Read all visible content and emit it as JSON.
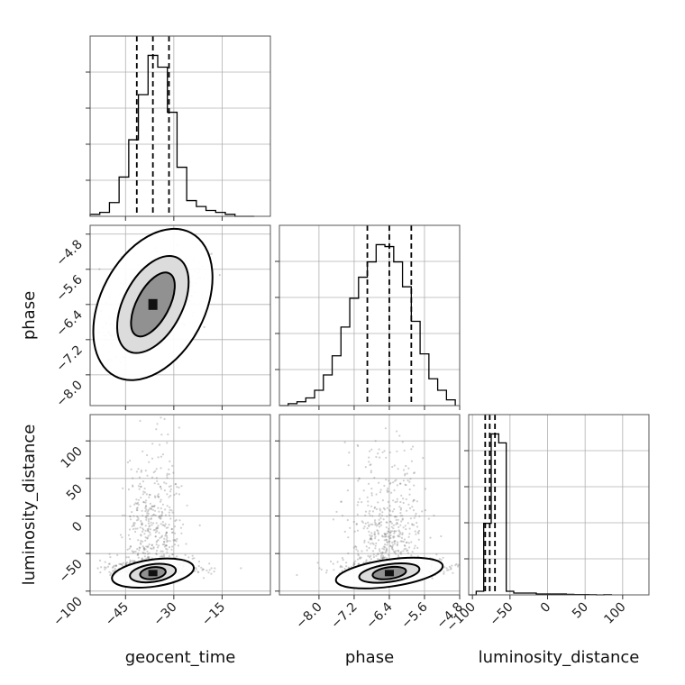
{
  "chart_data": {
    "type": "corner",
    "parameters": [
      "geocent_time",
      "phase",
      "luminosity_distance"
    ],
    "quantile_lines": {
      "geocent_time": [
        -41.5,
        -36.5,
        -31.5
      ],
      "phase": [
        -6.9,
        -6.4,
        -5.9
      ],
      "luminosity_distance": [
        -83,
        -77,
        -70
      ]
    },
    "marginals": [
      {
        "parameter": "geocent_time",
        "xlim": [
          -56,
          0
        ],
        "ticks": [
          -45,
          -30,
          -15
        ],
        "tick_labels": [
          "−45",
          "−30",
          "−15"
        ],
        "bin_edges": [
          -56,
          -53,
          -50,
          -47,
          -44,
          -41,
          -38,
          -35,
          -32,
          -29,
          -26,
          -23,
          -20,
          -17,
          -14,
          -11,
          -8,
          -5
        ],
        "counts": [
          1,
          2,
          7,
          20,
          39,
          62,
          82,
          76,
          53,
          25,
          8,
          5,
          3,
          2,
          1,
          0,
          0
        ]
      },
      {
        "parameter": "phase",
        "xlim": [
          -8.9,
          -4.8
        ],
        "ticks": [
          -8.0,
          -7.2,
          -6.4,
          -5.6,
          -4.8
        ],
        "tick_labels": [
          "−8.0",
          "−7.2",
          "−6.4",
          "−5.6",
          "−4.8"
        ],
        "bin_edges": [
          -8.9,
          -8.7,
          -8.5,
          -8.3,
          -8.1,
          -7.9,
          -7.7,
          -7.5,
          -7.3,
          -7.1,
          -6.9,
          -6.7,
          -6.5,
          -6.3,
          -6.1,
          -5.9,
          -5.7,
          -5.5,
          -5.3,
          -5.1,
          -4.9
        ],
        "counts": [
          0,
          1,
          2,
          4,
          8,
          16,
          26,
          41,
          56,
          67,
          75,
          84,
          83,
          75,
          62,
          44,
          27,
          14,
          8,
          3
        ]
      },
      {
        "parameter": "luminosity_distance",
        "xlim": [
          -105,
          135
        ],
        "ticks": [
          -100,
          -50,
          0,
          50,
          100
        ],
        "tick_labels": [
          "−100",
          "−50",
          "0",
          "50",
          "100"
        ],
        "bin_edges": [
          -105,
          -95,
          -85,
          -75,
          -65,
          -55,
          -45,
          -35,
          -25,
          -15,
          -5,
          5,
          15,
          25,
          35,
          45,
          55,
          65,
          75,
          85
        ],
        "counts": [
          0,
          2,
          40,
          90,
          85,
          2,
          1,
          1,
          1,
          0.5,
          0.5,
          0.5,
          0.5,
          0.3,
          0.2,
          0.2,
          0.1,
          0,
          0.1
        ]
      }
    ],
    "pairs": [
      {
        "x_parameter": "geocent_time",
        "y_parameter": "phase",
        "xlim": [
          -56,
          0
        ],
        "ylim": [
          -8.7,
          -4.6
        ],
        "y_ticks": [
          -8.0,
          -7.2,
          -6.4,
          -5.6,
          -4.8
        ],
        "y_tick_labels": [
          "−8.0",
          "−7.2",
          "−6.4",
          "−5.6",
          "−4.8"
        ],
        "center": [
          -36.5,
          -6.4
        ],
        "contour_sigmas": [
          [
            1,
            1.3
          ],
          [
            1.8,
            1.95
          ],
          [
            3.2,
            3.0
          ]
        ]
      },
      {
        "x_parameter": "geocent_time",
        "y_parameter": "luminosity_distance",
        "xlim": [
          -56,
          0
        ],
        "ylim": [
          -105,
          135
        ],
        "y_ticks": [
          -100,
          -50,
          0,
          50,
          100
        ],
        "y_tick_labels": [
          "−100",
          "−50",
          "0",
          "50",
          "100"
        ],
        "center": [
          -36.5,
          -76
        ],
        "contour_sigmas": [
          [
            1,
            1.3
          ],
          [
            1.8,
            1.95
          ],
          [
            3.2,
            3.0
          ]
        ]
      },
      {
        "x_parameter": "phase",
        "y_parameter": "luminosity_distance",
        "xlim": [
          -8.9,
          -4.8
        ],
        "ylim": [
          -105,
          135
        ],
        "center": [
          -6.4,
          -76
        ],
        "contour_sigmas": [
          [
            1,
            1.3
          ],
          [
            1.8,
            1.95
          ],
          [
            3.2,
            3.0
          ]
        ]
      }
    ],
    "axis_labels": {
      "x": [
        "geocent_time",
        "phase",
        "luminosity_distance"
      ],
      "y": [
        "phase",
        "luminosity_distance"
      ]
    },
    "grid": true,
    "colors": {
      "lines": "#000000",
      "grid": "#b0b0b0",
      "scatter": "#777777"
    }
  }
}
